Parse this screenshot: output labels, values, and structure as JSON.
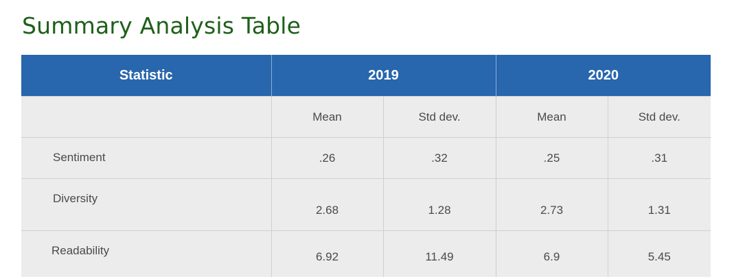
{
  "title": "Summary Analysis Table",
  "table": {
    "header": {
      "statistic": "Statistic",
      "groups": [
        "2019",
        "2020"
      ]
    },
    "subheaders": [
      "Mean",
      "Std dev.",
      "Mean",
      "Std dev."
    ],
    "rows": [
      {
        "label": "Sentiment",
        "values": [
          ".26",
          ".32",
          ".25",
          ".31"
        ]
      },
      {
        "label": "Diversity",
        "values": [
          "2.68",
          "1.28",
          "2.73",
          "1.31"
        ]
      },
      {
        "label": "Readability",
        "values": [
          "6.92",
          "11.49",
          "6.9",
          "5.45"
        ]
      }
    ]
  },
  "colors": {
    "title": "#1f5f1a",
    "header_bg": "#2866ad",
    "header_text": "#ffffff",
    "body_bg": "#ececec",
    "body_text": "#4a4a4a"
  }
}
